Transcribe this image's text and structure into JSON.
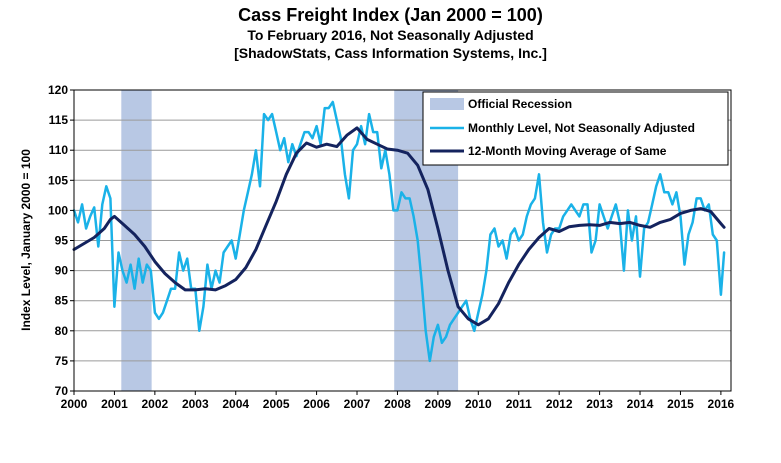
{
  "chart_data": {
    "type": "line",
    "title": "Cass Freight Index (Jan 2000 = 100)",
    "subtitle": "To February 2016, Not Seasonally Adjusted",
    "source": "[ShadowStats, Cass Information Systems, Inc.]",
    "xlabel": "",
    "ylabel": "Index Level, January 2000 = 100",
    "xlim": [
      2000,
      2016.25
    ],
    "ylim": [
      70,
      120
    ],
    "x_ticks": [
      "2000",
      "2001",
      "2002",
      "2003",
      "2004",
      "2005",
      "2006",
      "2007",
      "2008",
      "2009",
      "2010",
      "2011",
      "2012",
      "2013",
      "2014",
      "2015",
      "2016"
    ],
    "y_ticks": [
      "70",
      "75",
      "80",
      "85",
      "90",
      "95",
      "100",
      "105",
      "110",
      "115",
      "120"
    ],
    "grid": "horizontal",
    "legend_position": "top-right",
    "recessions": [
      {
        "label": "Official Recession",
        "start": 2001.17,
        "end": 2001.92
      },
      {
        "label": "Official Recession",
        "start": 2007.92,
        "end": 2009.5
      }
    ],
    "legend": [
      {
        "label": "Official Recession",
        "color": "#b8c8e4"
      },
      {
        "label": "Monthly Level, Not Seasonally Adjusted",
        "color": "#1ab2e8"
      },
      {
        "label": "12-Month Moving Average of Same",
        "color": "#14235e"
      }
    ],
    "series": [
      {
        "name": "Monthly Level, Not Seasonally Adjusted",
        "color": "#1ab2e8",
        "x": [
          2000.0,
          2000.1,
          2000.2,
          2000.3,
          2000.4,
          2000.5,
          2000.6,
          2000.7,
          2000.8,
          2000.9,
          2001.0,
          2001.1,
          2001.2,
          2001.3,
          2001.4,
          2001.5,
          2001.6,
          2001.7,
          2001.8,
          2001.9,
          2002.0,
          2002.1,
          2002.2,
          2002.3,
          2002.4,
          2002.5,
          2002.6,
          2002.7,
          2002.8,
          2002.9,
          2003.0,
          2003.1,
          2003.2,
          2003.3,
          2003.4,
          2003.5,
          2003.6,
          2003.7,
          2003.8,
          2003.9,
          2004.0,
          2004.1,
          2004.2,
          2004.3,
          2004.4,
          2004.5,
          2004.6,
          2004.7,
          2004.8,
          2004.9,
          2005.0,
          2005.1,
          2005.2,
          2005.3,
          2005.4,
          2005.5,
          2005.6,
          2005.7,
          2005.8,
          2005.9,
          2006.0,
          2006.1,
          2006.2,
          2006.3,
          2006.4,
          2006.5,
          2006.6,
          2006.7,
          2006.8,
          2006.9,
          2007.0,
          2007.1,
          2007.2,
          2007.3,
          2007.4,
          2007.5,
          2007.6,
          2007.7,
          2007.8,
          2007.9,
          2008.0,
          2008.1,
          2008.2,
          2008.3,
          2008.4,
          2008.5,
          2008.6,
          2008.7,
          2008.8,
          2008.9,
          2009.0,
          2009.1,
          2009.2,
          2009.3,
          2009.4,
          2009.5,
          2009.6,
          2009.7,
          2009.8,
          2009.9,
          2010.0,
          2010.1,
          2010.2,
          2010.3,
          2010.4,
          2010.5,
          2010.6,
          2010.7,
          2010.8,
          2010.9,
          2011.0,
          2011.1,
          2011.2,
          2011.3,
          2011.4,
          2011.5,
          2011.6,
          2011.7,
          2011.8,
          2011.9,
          2012.0,
          2012.1,
          2012.2,
          2012.3,
          2012.4,
          2012.5,
          2012.6,
          2012.7,
          2012.8,
          2012.9,
          2013.0,
          2013.1,
          2013.2,
          2013.3,
          2013.4,
          2013.5,
          2013.6,
          2013.7,
          2013.8,
          2013.9,
          2014.0,
          2014.1,
          2014.2,
          2014.3,
          2014.4,
          2014.5,
          2014.6,
          2014.7,
          2014.8,
          2014.9,
          2015.0,
          2015.1,
          2015.2,
          2015.3,
          2015.4,
          2015.5,
          2015.6,
          2015.7,
          2015.8,
          2015.9,
          2016.0,
          2016.08
        ],
        "values": [
          100,
          98,
          101,
          97,
          99,
          100.5,
          94,
          101,
          104,
          102,
          84,
          93,
          90,
          88,
          91,
          87,
          92,
          88,
          91,
          90,
          83,
          82,
          83,
          85,
          87,
          87,
          93,
          90,
          92,
          87,
          87,
          80,
          84,
          91,
          87,
          90,
          88,
          93,
          94,
          95,
          92,
          96,
          100,
          103,
          106,
          110,
          104,
          116,
          115,
          116,
          113,
          110,
          112,
          108,
          111,
          109,
          111,
          113,
          113,
          112,
          114,
          111,
          117,
          117,
          118,
          115,
          112,
          106,
          102,
          110,
          111,
          114,
          111,
          116,
          113,
          113,
          107,
          110,
          106,
          100,
          100,
          103,
          102,
          102,
          99,
          95,
          88,
          80,
          75,
          79,
          81,
          78,
          79,
          81,
          82,
          83,
          84,
          85,
          82,
          80,
          83,
          86,
          90,
          96,
          97,
          94,
          95,
          92,
          96,
          97,
          95,
          96,
          99,
          101,
          102,
          106,
          98,
          93,
          96,
          97,
          97,
          99,
          100,
          101,
          100,
          99,
          101,
          101,
          93,
          95,
          101,
          99,
          97,
          99,
          101,
          98,
          90,
          100,
          95,
          99,
          89,
          97,
          98,
          101,
          104,
          106,
          103,
          103,
          101,
          103,
          99,
          91,
          96,
          98,
          102,
          102,
          100,
          101,
          96,
          95,
          86,
          93
        ]
      },
      {
        "name": "12-Month Moving Average of Same",
        "color": "#14235e",
        "x": [
          2000.0,
          2000.25,
          2000.5,
          2000.75,
          2000.9,
          2001.0,
          2001.25,
          2001.5,
          2001.75,
          2002.0,
          2002.25,
          2002.5,
          2002.75,
          2003.0,
          2003.25,
          2003.5,
          2003.75,
          2004.0,
          2004.25,
          2004.5,
          2004.75,
          2005.0,
          2005.25,
          2005.5,
          2005.75,
          2006.0,
          2006.25,
          2006.5,
          2006.75,
          2007.0,
          2007.25,
          2007.5,
          2007.75,
          2008.0,
          2008.25,
          2008.5,
          2008.75,
          2009.0,
          2009.25,
          2009.5,
          2009.75,
          2010.0,
          2010.25,
          2010.5,
          2010.75,
          2011.0,
          2011.25,
          2011.5,
          2011.75,
          2012.0,
          2012.25,
          2012.5,
          2012.75,
          2013.0,
          2013.25,
          2013.5,
          2013.75,
          2014.0,
          2014.25,
          2014.5,
          2014.75,
          2015.0,
          2015.25,
          2015.5,
          2015.75,
          2016.0,
          2016.08
        ],
        "values": [
          93.5,
          94.5,
          95.5,
          97,
          98.5,
          99,
          97.5,
          96,
          94,
          91.5,
          89.5,
          88,
          86.8,
          86.8,
          87,
          86.8,
          87.5,
          88.5,
          90.5,
          93.5,
          97.5,
          101.5,
          106,
          109.5,
          111.2,
          110.5,
          111,
          110.6,
          112.5,
          113.7,
          111.8,
          111,
          110.2,
          110,
          109.5,
          107.5,
          103.5,
          97,
          90,
          84,
          82,
          81,
          82,
          84.5,
          88,
          91,
          93.5,
          95.5,
          97,
          96.5,
          97.3,
          97.5,
          97.6,
          97.5,
          98,
          97.8,
          98,
          97.5,
          97.2,
          98,
          98.5,
          99.5,
          100,
          100.3,
          99.8,
          97.8,
          97.2
        ]
      }
    ]
  }
}
